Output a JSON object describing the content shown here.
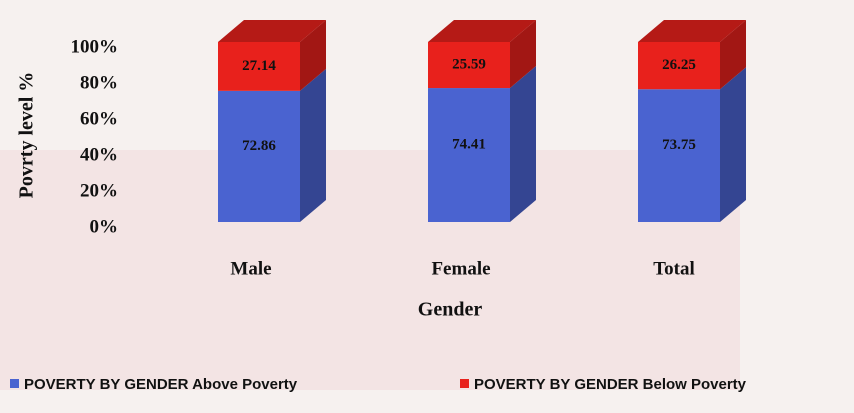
{
  "chart_data": {
    "type": "bar3d_stacked",
    "y_label": "Povrty level %",
    "x_label": "Gender",
    "categories": [
      "Male",
      "Female",
      "Total"
    ],
    "series": [
      {
        "name": "POVERTY BY GENDER  Above Poverty",
        "color": "#4a63d0",
        "values": [
          72.86,
          74.41,
          73.75
        ]
      },
      {
        "name": "POVERTY BY GENDER  Below Poverty",
        "color": "#e8211c",
        "values": [
          27.14,
          25.59,
          26.25
        ]
      }
    ],
    "ylim": [
      0,
      100
    ],
    "yticks": [
      {
        "value": 0,
        "label": "0%"
      },
      {
        "value": 20,
        "label": "20%"
      },
      {
        "value": 40,
        "label": "40%"
      },
      {
        "value": 60,
        "label": "60%"
      },
      {
        "value": 80,
        "label": "80%"
      },
      {
        "value": 100,
        "label": "100%"
      }
    ]
  }
}
